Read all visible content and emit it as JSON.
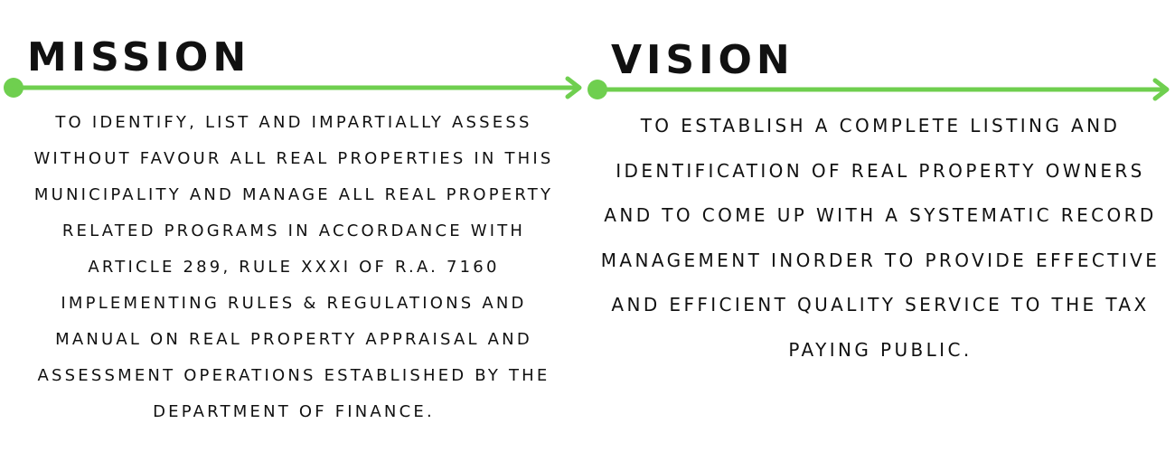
{
  "mission": {
    "heading": "MISSION",
    "text": "TO IDENTIFY, LIST AND IMPARTIALLY ASSESS WITHOUT FAVOUR ALL REAL PROPERTIES IN THIS MUNICIPALITY AND MANAGE ALL REAL PROPERTY RELATED PROGRAMS IN ACCORDANCE WITH ARTICLE 289, RULE XXXI OF R.A. 7160 IMPLEMENTING RULES & REGULATIONS AND MANUAL ON REAL PROPERTY APPRAISAL AND ASSESSMENT OPERATIONS ESTABLISHED BY THE DEPARTMENT OF FINANCE."
  },
  "vision": {
    "heading": "VISION",
    "text": "TO ESTABLISH A COMPLETE LISTING AND IDENTIFICATION OF REAL PROPERTY OWNERS AND TO COME UP WITH A SYSTEMATIC RECORD MANAGEMENT INORDER TO PROVIDE EFFECTIVE AND EFFICIENT QUALITY SERVICE TO THE TAX PAYING PUBLIC."
  },
  "colors": {
    "accent": "#6fcf4f",
    "text": "#111111",
    "background": "#ffffff"
  }
}
